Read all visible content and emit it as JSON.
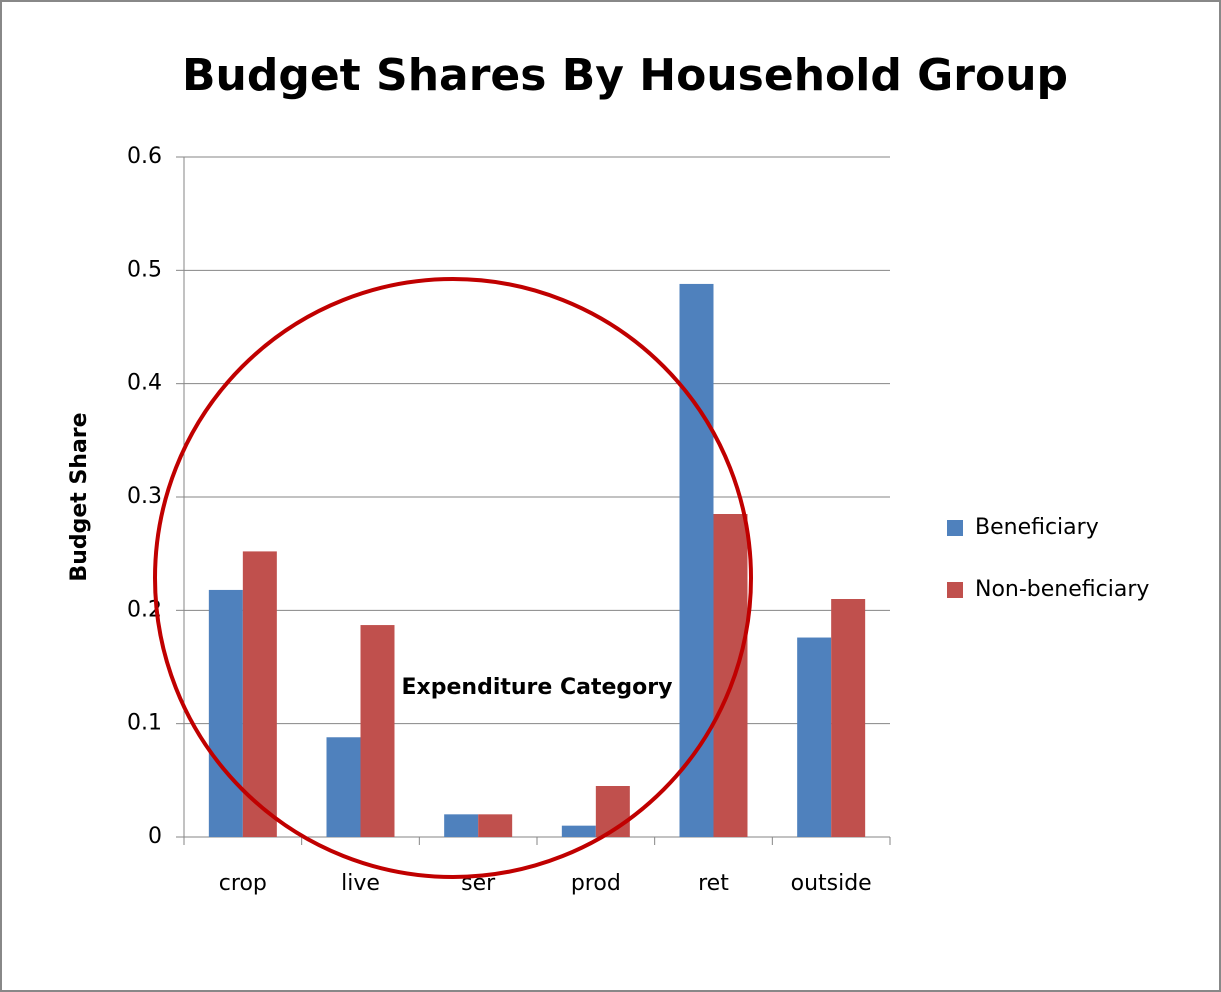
{
  "chart_data": {
    "type": "bar",
    "title": "Budget Shares By Household Group",
    "x_label": "Expenditure Category",
    "y_label": "Budget Share",
    "categories": [
      "crop",
      "live",
      "ser",
      "prod",
      "ret",
      "outside"
    ],
    "series": [
      {
        "name": "Beneficiary",
        "color": "#4f81bd",
        "values": [
          0.218,
          0.088,
          0.02,
          0.01,
          0.488,
          0.176
        ]
      },
      {
        "name": "Non-beneficiary",
        "color": "#c0504d",
        "values": [
          0.252,
          0.187,
          0.02,
          0.045,
          0.285,
          0.21
        ]
      }
    ],
    "ylim": [
      0,
      0.6
    ],
    "yticks": [
      0,
      0.1,
      0.2,
      0.3,
      0.4,
      0.5,
      0.6
    ],
    "grid": true,
    "legend": "right"
  }
}
